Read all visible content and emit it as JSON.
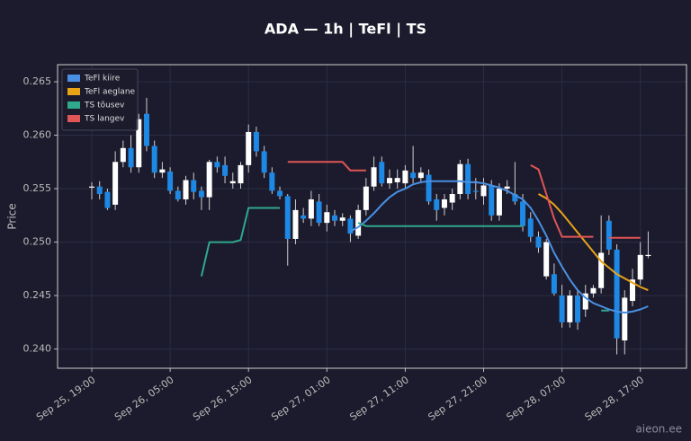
{
  "chart_data": {
    "type": "candlestick",
    "title": "ADA — 1h  |  TeFl  |  TS",
    "y_label": "Price",
    "watermark": "aieon.ee",
    "categories": [
      "Sep 25, 19:00",
      null,
      null,
      null,
      null,
      null,
      null,
      null,
      null,
      null,
      "Sep 26, 05:00",
      null,
      null,
      null,
      null,
      null,
      null,
      null,
      null,
      null,
      "Sep 26, 15:00",
      null,
      null,
      null,
      null,
      null,
      null,
      null,
      null,
      null,
      "Sep 27, 01:00",
      null,
      null,
      null,
      null,
      null,
      null,
      null,
      null,
      null,
      "Sep 27, 11:00",
      null,
      null,
      null,
      null,
      null,
      null,
      null,
      null,
      null,
      "Sep 27, 21:00",
      null,
      null,
      null,
      null,
      null,
      null,
      null,
      null,
      null,
      "Sep 28, 07:00",
      null,
      null,
      null,
      null,
      null,
      null,
      null,
      null,
      null,
      "Sep 28, 17:00",
      null
    ],
    "open": [
      0.2551,
      0.2552,
      0.2547,
      0.2535,
      0.2575,
      0.2588,
      0.257,
      0.262,
      0.259,
      0.2565,
      0.2566,
      0.2548,
      0.254,
      0.2558,
      0.2548,
      0.2542,
      0.2575,
      0.2572,
      0.2555,
      0.2555,
      0.2572,
      0.2603,
      0.2585,
      0.2565,
      0.2548,
      0.2543,
      0.2503,
      0.2525,
      0.2522,
      0.2538,
      0.2518,
      0.2525,
      0.252,
      0.2522,
      0.2506,
      0.253,
      0.2552,
      0.2575,
      0.2555,
      0.2556,
      0.2555,
      0.2565,
      0.256,
      0.2563,
      0.254,
      0.2532,
      0.2537,
      0.2545,
      0.2573,
      0.2548,
      0.2543,
      0.2553,
      0.2525,
      0.255,
      0.2545,
      0.2538,
      0.2522,
      0.2505,
      0.2468,
      0.247,
      0.245,
      0.2425,
      0.245,
      0.2437,
      0.2452,
      0.2457,
      0.252,
      0.2493,
      0.2408,
      0.2445,
      0.2465,
      0.2487
    ],
    "high": [
      0.2556,
      0.2557,
      0.255,
      0.2585,
      0.2595,
      0.26,
      0.262,
      0.2635,
      0.2595,
      0.2575,
      0.257,
      0.2552,
      0.2562,
      0.2565,
      0.2552,
      0.2577,
      0.258,
      0.258,
      0.2565,
      0.2575,
      0.261,
      0.2608,
      0.259,
      0.257,
      0.2552,
      0.2545,
      0.254,
      0.2532,
      0.2548,
      0.2545,
      0.2535,
      0.253,
      0.2527,
      0.2525,
      0.2535,
      0.256,
      0.258,
      0.258,
      0.2568,
      0.2568,
      0.2572,
      0.259,
      0.257,
      0.2568,
      0.2545,
      0.2545,
      0.255,
      0.2577,
      0.2578,
      0.256,
      0.256,
      0.2558,
      0.2555,
      0.2558,
      0.2575,
      0.2545,
      0.2528,
      0.251,
      0.2503,
      0.248,
      0.246,
      0.2455,
      0.2455,
      0.246,
      0.246,
      0.2525,
      0.2525,
      0.2498,
      0.2455,
      0.2475,
      0.25,
      0.251
    ],
    "low": [
      0.254,
      0.254,
      0.253,
      0.253,
      0.257,
      0.2565,
      0.2565,
      0.2585,
      0.256,
      0.256,
      0.2545,
      0.2538,
      0.2535,
      0.254,
      0.253,
      0.253,
      0.2565,
      0.2555,
      0.255,
      0.255,
      0.2565,
      0.258,
      0.256,
      0.2545,
      0.254,
      0.2478,
      0.2498,
      0.2518,
      0.2515,
      0.2515,
      0.251,
      0.2515,
      0.2515,
      0.25,
      0.2503,
      0.2525,
      0.2548,
      0.2552,
      0.255,
      0.255,
      0.255,
      0.2555,
      0.2555,
      0.2535,
      0.252,
      0.2525,
      0.253,
      0.254,
      0.254,
      0.254,
      0.2535,
      0.252,
      0.252,
      0.2545,
      0.2535,
      0.251,
      0.25,
      0.249,
      0.2465,
      0.245,
      0.242,
      0.242,
      0.2418,
      0.243,
      0.2448,
      0.2452,
      0.2488,
      0.2395,
      0.2395,
      0.244,
      0.246,
      0.2485
    ],
    "close": [
      0.2552,
      0.2545,
      0.2532,
      0.2575,
      0.2588,
      0.257,
      0.2615,
      0.259,
      0.2565,
      0.2568,
      0.2548,
      0.254,
      0.2558,
      0.2547,
      0.2542,
      0.2575,
      0.257,
      0.2562,
      0.2557,
      0.2572,
      0.2603,
      0.2585,
      0.2565,
      0.2548,
      0.2543,
      0.2503,
      0.253,
      0.2522,
      0.254,
      0.2518,
      0.2528,
      0.252,
      0.2523,
      0.2508,
      0.253,
      0.2552,
      0.257,
      0.2555,
      0.256,
      0.256,
      0.2567,
      0.256,
      0.2565,
      0.2538,
      0.253,
      0.254,
      0.2545,
      0.2573,
      0.2545,
      0.2547,
      0.2553,
      0.2525,
      0.255,
      0.2552,
      0.2538,
      0.2515,
      0.2505,
      0.2495,
      0.25,
      0.2452,
      0.2425,
      0.245,
      0.2425,
      0.2452,
      0.2457,
      0.249,
      0.2493,
      0.241,
      0.2448,
      0.2465,
      0.2488,
      0.2488
    ],
    "up_color": "#ffffff",
    "down_color": "#1e88e5",
    "series": [
      {
        "name": "TeFl kiire",
        "color": "#4a90e2",
        "values": [
          null,
          null,
          null,
          null,
          null,
          null,
          null,
          null,
          null,
          null,
          null,
          null,
          null,
          null,
          null,
          null,
          null,
          null,
          null,
          null,
          null,
          null,
          null,
          null,
          null,
          null,
          null,
          null,
          null,
          null,
          null,
          null,
          null,
          0.251,
          0.2514,
          0.252,
          0.2527,
          0.2535,
          0.2542,
          0.2547,
          0.255,
          0.2554,
          0.2556,
          0.2557,
          0.2557,
          0.2557,
          0.2557,
          0.2557,
          0.2556,
          0.2556,
          0.2555,
          0.2553,
          0.2551,
          0.2548,
          0.2544,
          0.254,
          0.2532,
          0.252,
          0.2506,
          0.249,
          0.2477,
          0.2465,
          0.2455,
          0.2448,
          0.2443,
          0.244,
          0.2437,
          0.2435,
          0.2434,
          0.2435,
          0.2437,
          0.244
        ]
      },
      {
        "name": "TeFl aeglane",
        "color": "#e8a317",
        "values": [
          null,
          null,
          null,
          null,
          null,
          null,
          null,
          null,
          null,
          null,
          null,
          null,
          null,
          null,
          null,
          null,
          null,
          null,
          null,
          null,
          null,
          null,
          null,
          null,
          null,
          null,
          null,
          null,
          null,
          null,
          null,
          null,
          null,
          null,
          null,
          null,
          null,
          null,
          null,
          null,
          null,
          null,
          null,
          null,
          null,
          null,
          null,
          null,
          null,
          null,
          null,
          null,
          null,
          null,
          null,
          null,
          null,
          0.2545,
          0.2541,
          0.2535,
          0.2527,
          0.2518,
          0.2509,
          0.25,
          0.2491,
          0.2482,
          0.2476,
          0.247,
          0.2466,
          0.2462,
          0.2458,
          0.2455
        ]
      },
      {
        "name": "TS tõusev",
        "color": "#2fa88c",
        "values": [
          null,
          null,
          null,
          null,
          null,
          null,
          null,
          null,
          null,
          null,
          null,
          null,
          null,
          null,
          0.2468,
          0.25,
          0.25,
          0.25,
          0.25,
          0.2502,
          0.2532,
          0.2532,
          0.2532,
          0.2532,
          0.2532,
          null,
          null,
          null,
          null,
          null,
          null,
          null,
          null,
          null,
          0.2518,
          0.2515,
          0.2515,
          0.2515,
          0.2515,
          0.2515,
          0.2515,
          0.2515,
          0.2515,
          0.2515,
          0.2515,
          0.2515,
          0.2515,
          0.2515,
          0.2515,
          0.2515,
          0.2515,
          0.2515,
          0.2515,
          0.2515,
          0.2515,
          0.2515,
          null,
          null,
          null,
          null,
          null,
          null,
          null,
          null,
          null,
          0.2436,
          0.2436,
          null,
          null,
          null,
          null,
          null
        ]
      },
      {
        "name": "TS langev",
        "color": "#e05555",
        "values": [
          null,
          null,
          null,
          null,
          null,
          null,
          null,
          null,
          null,
          null,
          null,
          null,
          null,
          null,
          null,
          null,
          null,
          null,
          null,
          null,
          null,
          null,
          null,
          null,
          null,
          0.2575,
          0.2575,
          0.2575,
          0.2575,
          0.2575,
          0.2575,
          0.2575,
          0.2575,
          0.2567,
          0.2567,
          0.2567,
          null,
          null,
          null,
          null,
          null,
          null,
          null,
          null,
          null,
          null,
          null,
          null,
          null,
          null,
          null,
          null,
          null,
          null,
          null,
          null,
          0.2572,
          0.2568,
          0.2545,
          0.2522,
          0.2505,
          0.2505,
          0.2505,
          0.2505,
          0.2505,
          null,
          0.2504,
          0.2504,
          0.2504,
          0.2504,
          0.2504,
          null
        ]
      }
    ],
    "ylim": [
      0.2382,
      0.2666
    ],
    "yticks": [
      {
        "value": 0.24,
        "label": "0.240"
      },
      0.245,
      {
        "value": 0.25,
        "label": "0.250"
      },
      0.255,
      {
        "value": 0.26,
        "label": "0.260"
      },
      0.265
    ],
    "grid": true,
    "legend": "upper left"
  }
}
